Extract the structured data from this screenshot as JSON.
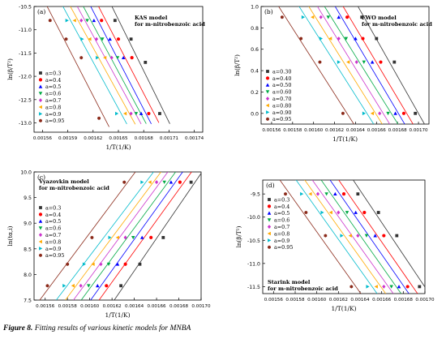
{
  "caption": {
    "label": "Figure 8.",
    "text": "Fitting results of various kinetic models for MNBA"
  },
  "colors": {
    "0.3": "#333333",
    "0.4": "#ff0000",
    "0.5": "#0000ff",
    "0.6": "#00aa44",
    "0.7": "#cc33cc",
    "0.8": "#ffaa00",
    "0.9": "#00bbcc",
    "0.95": "#8b2a1a"
  },
  "chart_data": [
    {
      "type": "scatter",
      "panel": "(a)",
      "title": "KAS model",
      "subtitle": "for m-nitrobenzoic acid",
      "xlabel": "1/T(1/K)",
      "ylabel": "ln(β/T²)",
      "xlim": [
        0.00155,
        0.00175
      ],
      "ylim": [
        -13.2,
        -10.5
      ],
      "xticks": [
        "0.00156",
        "0.00159",
        "0.00162",
        "0.00165",
        "0.00168",
        "0.00171",
        "0.00174"
      ],
      "yticks": [
        "-10.5",
        "-11.0",
        "-11.5",
        "-12.0",
        "-12.5",
        "-13.0"
      ],
      "legend": {
        "position": "left",
        "marker": "a"
      },
      "series": [
        {
          "name": "a=0.3",
          "conv": "0.3",
          "marker": "square",
          "x": [
            0.001646,
            0.001665,
            0.001682,
            0.001699
          ],
          "y": [
            -10.8,
            -11.2,
            -11.7,
            -12.8
          ]
        },
        {
          "name": "a=0.4",
          "conv": "0.4",
          "marker": "circle",
          "x": [
            0.00163,
            0.00165,
            0.001666,
            0.001686
          ],
          "y": [
            -10.8,
            -11.2,
            -11.6,
            -12.8
          ]
        },
        {
          "name": "a=0.5",
          "conv": "0.5",
          "marker": "triangle",
          "x": [
            0.001621,
            0.00164,
            0.001656,
            0.001677
          ],
          "y": [
            -10.8,
            -11.2,
            -11.6,
            -12.8
          ]
        },
        {
          "name": "a=0.6",
          "conv": "0.6",
          "marker": "tri-down",
          "x": [
            0.001613,
            0.001631,
            0.001649,
            0.001671
          ],
          "y": [
            -10.8,
            -11.2,
            -11.6,
            -12.8
          ]
        },
        {
          "name": "a=0.7",
          "conv": "0.7",
          "marker": "diamond",
          "x": [
            0.001606,
            0.001624,
            0.001642,
            0.001665
          ],
          "y": [
            -10.8,
            -11.2,
            -11.6,
            -12.8
          ]
        },
        {
          "name": "a=0.8",
          "conv": "0.8",
          "marker": "tri-left",
          "x": [
            0.001598,
            0.001616,
            0.001634,
            0.001658
          ],
          "y": [
            -10.8,
            -11.2,
            -11.6,
            -12.8
          ]
        },
        {
          "name": "a=0.9",
          "conv": "0.9",
          "marker": "tri-right",
          "x": [
            0.001589,
            0.001607,
            0.001625,
            0.001648
          ],
          "y": [
            -10.8,
            -11.2,
            -11.6,
            -12.8
          ]
        },
        {
          "name": "a=0.95",
          "conv": "0.95",
          "marker": "hexagon",
          "x": [
            0.001569,
            0.001588,
            0.001606,
            0.001627
          ],
          "y": [
            -10.8,
            -11.2,
            -11.6,
            -12.9
          ]
        }
      ]
    },
    {
      "type": "scatter",
      "panel": "(b)",
      "title": "FWO model",
      "subtitle": "for m-nitrobenzoic acid",
      "xlabel": "1/T(1/K)",
      "ylabel": "ln(β/T²)",
      "xlim": [
        0.00155,
        0.00171
      ],
      "ylim": [
        -0.1,
        1.0
      ],
      "xticks": [
        "0.00156",
        "0.00158",
        "0.00160",
        "0.00162",
        "0.00164",
        "0.00166",
        "0.00168",
        "0.00170"
      ],
      "yticks": [
        "0.0",
        "0.2",
        "0.4",
        "0.6",
        "0.8",
        "1.0"
      ],
      "legend": {
        "position": "left",
        "marker": "a"
      },
      "series": [
        {
          "name": "a=0.30",
          "conv": "0.3",
          "marker": "square",
          "x": [
            0.001646,
            0.00166,
            0.001677,
            0.001697
          ],
          "y": [
            0.9,
            0.7,
            0.48,
            0.0
          ]
        },
        {
          "name": "a=0.40",
          "conv": "0.4",
          "marker": "circle",
          "x": [
            0.001632,
            0.001647,
            0.001664,
            0.001686
          ],
          "y": [
            0.9,
            0.7,
            0.48,
            0.0
          ]
        },
        {
          "name": "a=0.50",
          "conv": "0.5",
          "marker": "triangle",
          "x": [
            0.001624,
            0.00164,
            0.001656,
            0.001678
          ],
          "y": [
            0.9,
            0.7,
            0.48,
            0.0
          ]
        },
        {
          "name": "a=0.60",
          "conv": "0.6",
          "marker": "tri-down",
          "x": [
            0.001614,
            0.001631,
            0.001648,
            0.001671
          ],
          "y": [
            0.9,
            0.7,
            0.48,
            0.0
          ]
        },
        {
          "name": "a=0.70",
          "conv": "0.7",
          "marker": "diamond",
          "x": [
            0.001607,
            0.001624,
            0.001641,
            0.001663
          ],
          "y": [
            0.9,
            0.7,
            0.48,
            0.0
          ]
        },
        {
          "name": "a=0.80",
          "conv": "0.8",
          "marker": "tri-left",
          "x": [
            0.001599,
            0.001616,
            0.001633,
            0.001656
          ],
          "y": [
            0.9,
            0.7,
            0.48,
            0.0
          ]
        },
        {
          "name": "a=0.90",
          "conv": "0.9",
          "marker": "tri-right",
          "x": [
            0.00159,
            0.001607,
            0.001624,
            0.001648
          ],
          "y": [
            0.9,
            0.7,
            0.48,
            0.0
          ]
        },
        {
          "name": "a=0.95",
          "conv": "0.95",
          "marker": "hexagon",
          "x": [
            0.00157,
            0.001588,
            0.001606,
            0.001628
          ],
          "y": [
            0.9,
            0.7,
            0.48,
            0.0
          ]
        }
      ]
    },
    {
      "type": "scatter",
      "panel": "(c)",
      "title": "Vyazovkin model",
      "subtitle": "for m-nitrobenzoic acid",
      "xlabel": "1/T(1/K)",
      "ylabel": "ln(tα,i)",
      "xlim": [
        0.00155,
        0.0017
      ],
      "ylim": [
        7.5,
        10.0
      ],
      "xticks": [
        "0.00156",
        "0.00158",
        "0.00160",
        "0.00162",
        "0.00164",
        "0.00166",
        "0.00168",
        "0.00170"
      ],
      "yticks": [
        "7.5",
        "8.0",
        "8.5",
        "9.0",
        "9.5",
        "10.0"
      ],
      "legend": {
        "position": "left",
        "marker": "a"
      },
      "series": [
        {
          "name": "a=0.3",
          "conv": "0.3",
          "marker": "square",
          "x": [
            0.001628,
            0.001645,
            0.001666,
            0.001691
          ],
          "y": [
            7.78,
            8.2,
            8.72,
            9.8
          ]
        },
        {
          "name": "a=0.4",
          "conv": "0.4",
          "marker": "circle",
          "x": [
            0.001615,
            0.001632,
            0.001655,
            0.001681
          ],
          "y": [
            7.78,
            8.2,
            8.72,
            9.8
          ]
        },
        {
          "name": "a=0.5",
          "conv": "0.5",
          "marker": "triangle",
          "x": [
            0.001607,
            0.001625,
            0.001647,
            0.001673
          ],
          "y": [
            7.78,
            8.2,
            8.72,
            9.8
          ]
        },
        {
          "name": "a=0.6",
          "conv": "0.6",
          "marker": "tri-down",
          "x": [
            0.001599,
            0.001617,
            0.001639,
            0.001667
          ],
          "y": [
            7.78,
            8.2,
            8.72,
            9.8
          ]
        },
        {
          "name": "a=0.7",
          "conv": "0.7",
          "marker": "diamond",
          "x": [
            0.001592,
            0.00161,
            0.001632,
            0.00166
          ],
          "y": [
            7.78,
            8.2,
            8.72,
            9.8
          ]
        },
        {
          "name": "a=0.8",
          "conv": "0.8",
          "marker": "tri-left",
          "x": [
            0.001585,
            0.001603,
            0.001625,
            0.001654
          ],
          "y": [
            7.78,
            8.2,
            8.72,
            9.8
          ]
        },
        {
          "name": "a=0.9",
          "conv": "0.9",
          "marker": "tri-right",
          "x": [
            0.001577,
            0.001595,
            0.001618,
            0.001647
          ],
          "y": [
            7.78,
            8.2,
            8.72,
            9.8
          ]
        },
        {
          "name": "a=0.95",
          "conv": "0.95",
          "marker": "hexagon",
          "x": [
            0.001562,
            0.00158,
            0.001602,
            0.001631
          ],
          "y": [
            7.78,
            8.2,
            8.72,
            9.8
          ]
        }
      ]
    },
    {
      "type": "scatter",
      "panel": "(d)",
      "title": "Starink model",
      "subtitle": "for m-nitrobenzoic acid",
      "xlabel": "1/T(1/K)",
      "ylabel": "ln(β/T²)",
      "xlim": [
        0.00155,
        0.0017
      ],
      "ylim": [
        -11.65,
        -9.2
      ],
      "xticks": [
        "0.00156",
        "0.00158",
        "0.00160",
        "0.00162",
        "0.00164",
        "0.00166",
        "0.00168",
        "0.00170"
      ],
      "yticks": [
        "-9.5",
        "-10.0",
        "-10.5",
        "-11.0",
        "-11.5"
      ],
      "legend": {
        "position": "left",
        "marker": "a"
      },
      "series": [
        {
          "name": "a=0.3",
          "conv": "0.3",
          "marker": "square",
          "x": [
            0.001638,
            0.001657,
            0.001674,
            0.001695
          ],
          "y": [
            -9.5,
            -9.9,
            -10.4,
            -11.5
          ]
        },
        {
          "name": "a=0.4",
          "conv": "0.4",
          "marker": "circle",
          "x": [
            0.001625,
            0.001644,
            0.001662,
            0.001684
          ],
          "y": [
            -9.5,
            -9.9,
            -10.4,
            -11.5
          ]
        },
        {
          "name": "a=0.5",
          "conv": "0.5",
          "marker": "triangle",
          "x": [
            0.001617,
            0.001636,
            0.001654,
            0.001676
          ],
          "y": [
            -9.5,
            -9.9,
            -10.4,
            -11.5
          ]
        },
        {
          "name": "a=0.6",
          "conv": "0.6",
          "marker": "tri-down",
          "x": [
            0.001609,
            0.001628,
            0.001646,
            0.001669
          ],
          "y": [
            -9.5,
            -9.9,
            -10.4,
            -11.5
          ]
        },
        {
          "name": "a=0.7",
          "conv": "0.7",
          "marker": "diamond",
          "x": [
            0.001601,
            0.00162,
            0.001638,
            0.001662
          ],
          "y": [
            -9.5,
            -9.9,
            -10.4,
            -11.5
          ]
        },
        {
          "name": "a=0.8",
          "conv": "0.8",
          "marker": "tri-left",
          "x": [
            0.001594,
            0.001613,
            0.001631,
            0.001655
          ],
          "y": [
            -9.5,
            -9.9,
            -10.4,
            -11.5
          ]
        },
        {
          "name": "a=0.9",
          "conv": "0.9",
          "marker": "tri-right",
          "x": [
            0.001586,
            0.001605,
            0.001623,
            0.001647
          ],
          "y": [
            -9.5,
            -9.9,
            -10.4,
            -11.5
          ]
        },
        {
          "name": "a=0.95",
          "conv": "0.95",
          "marker": "hexagon",
          "x": [
            0.001571,
            0.00159,
            0.001608,
            0.001632
          ],
          "y": [
            -9.5,
            -9.9,
            -10.4,
            -11.5
          ]
        }
      ]
    }
  ]
}
